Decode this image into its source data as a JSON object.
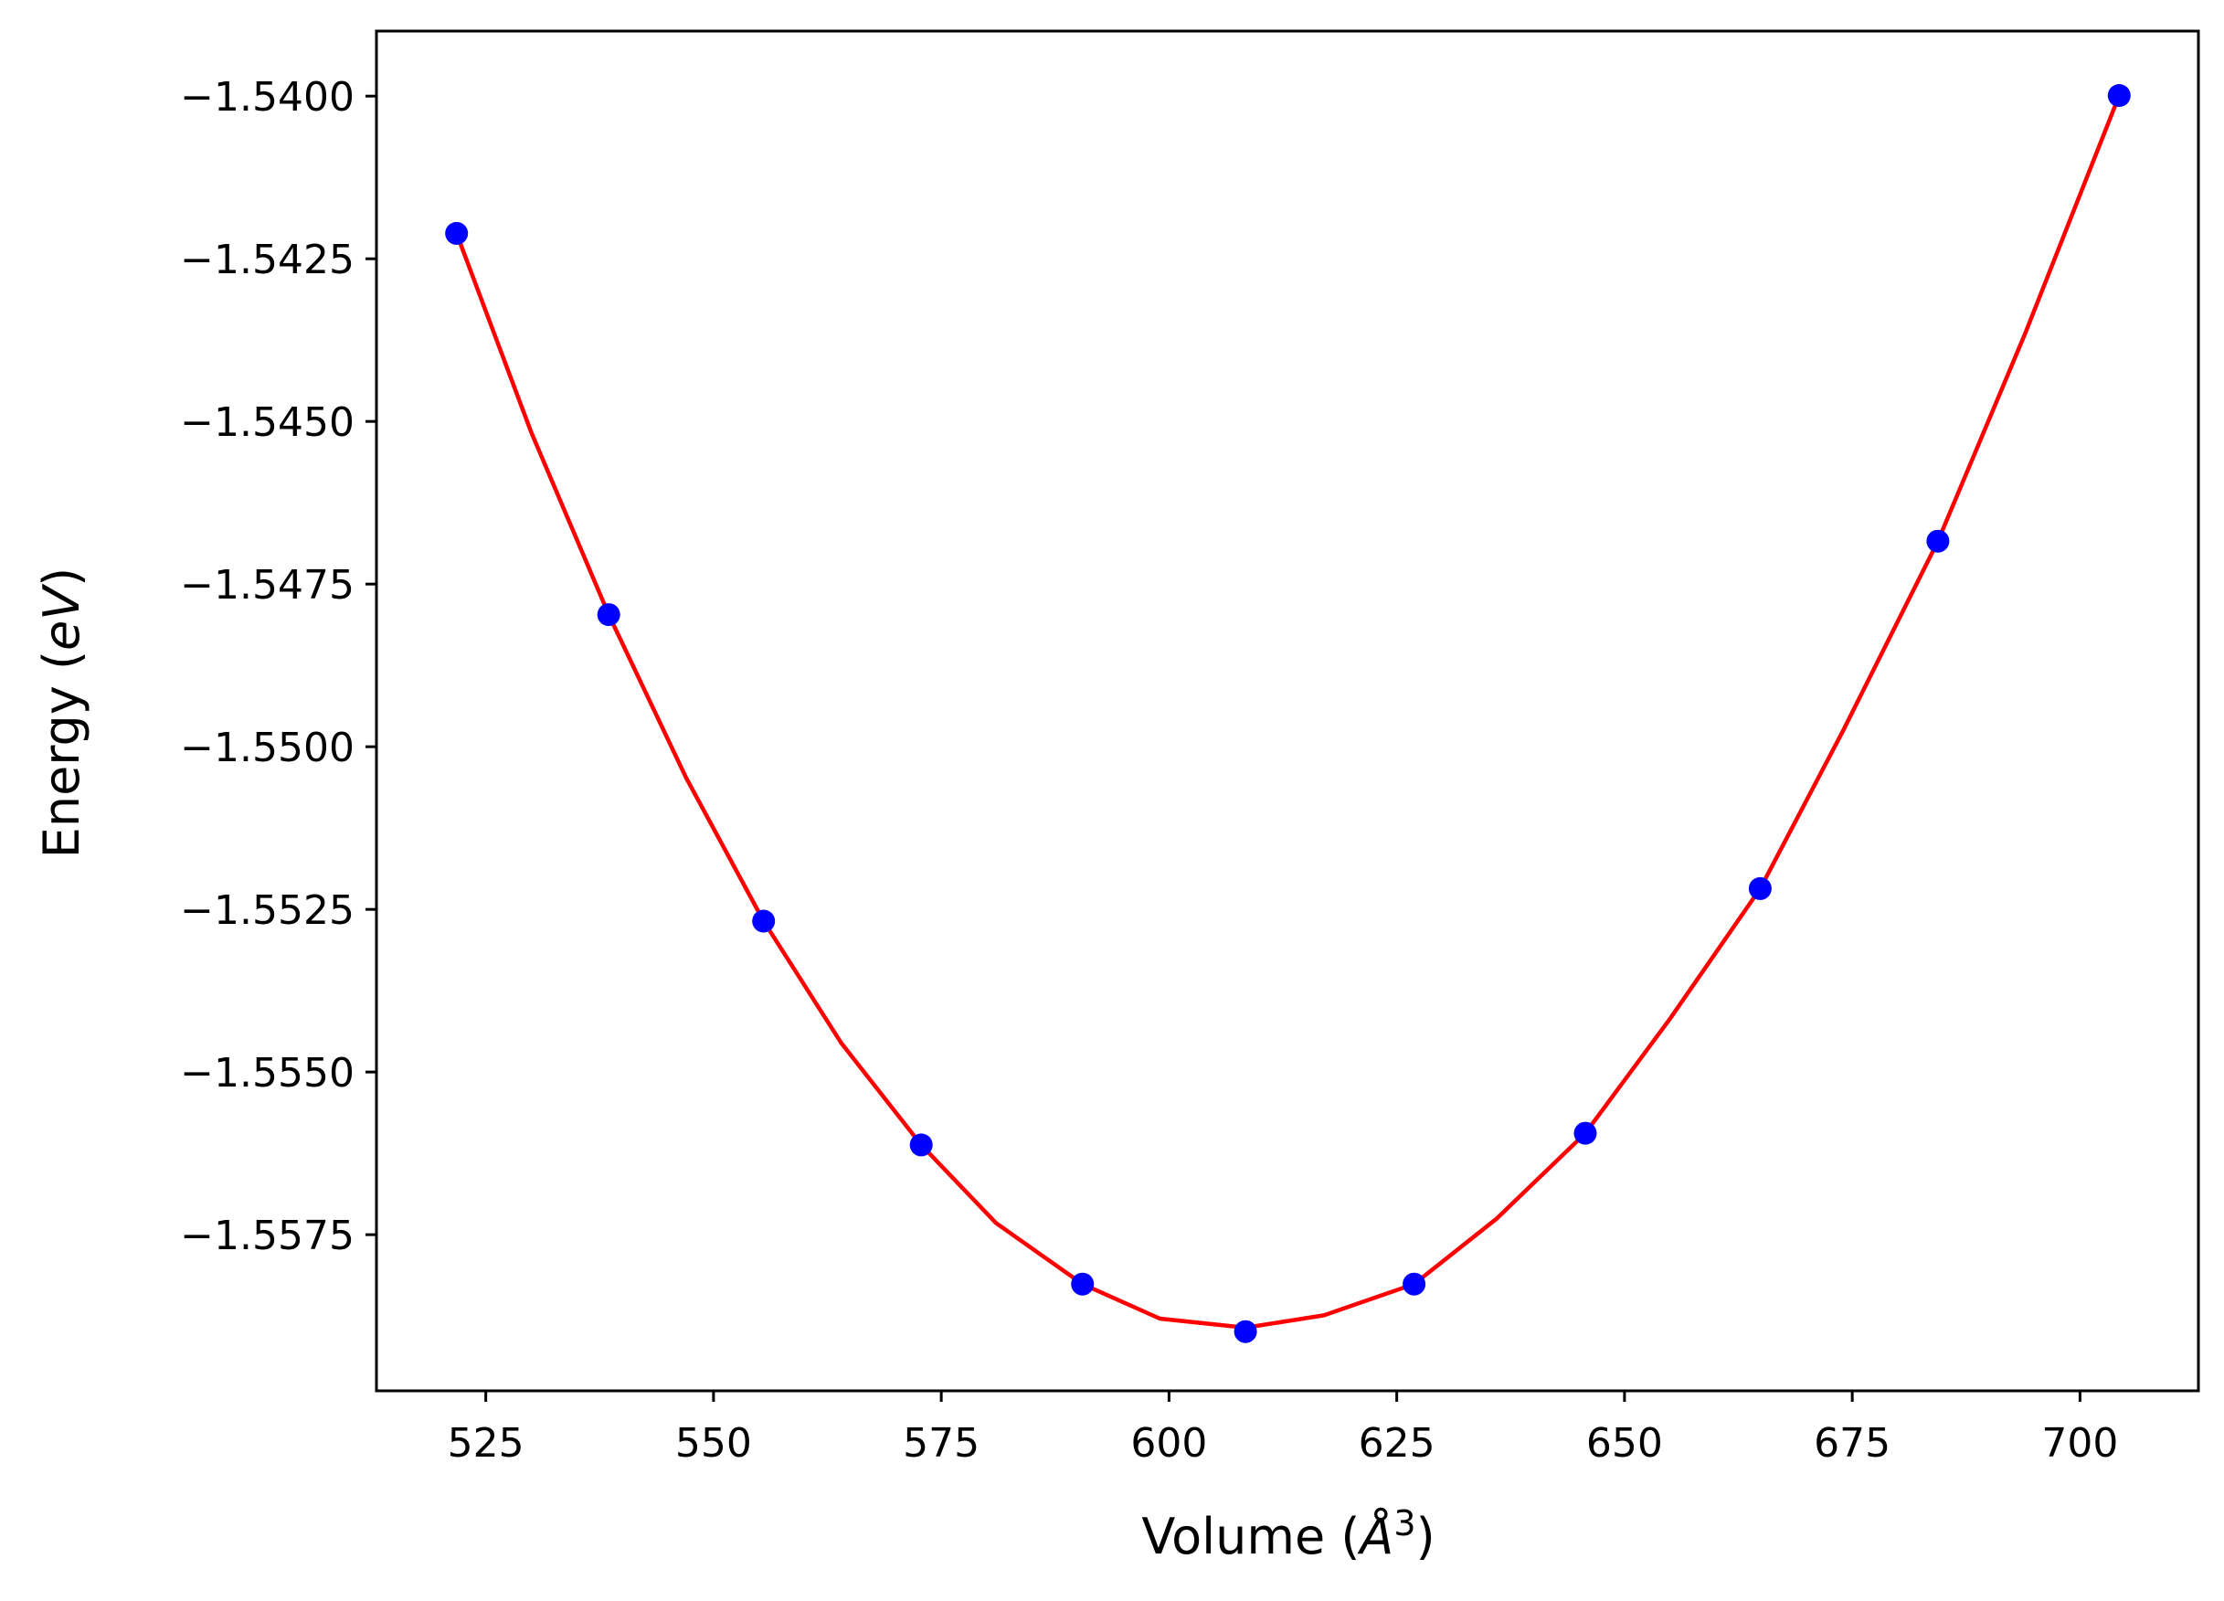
{
  "chart_data": {
    "type": "scatter",
    "xlabel": "Volume (",
    "xlabel_symbol": "Å",
    "xlabel_exponent": "3",
    "xlabel_close": ")",
    "ylabel": "Energy (",
    "ylabel_symbol": "eV",
    "ylabel_close": ")",
    "xlim": [
      513,
      713
    ],
    "ylim": [
      -1.5599,
      -1.539
    ],
    "xticks": [
      525,
      550,
      575,
      600,
      625,
      650,
      675,
      700
    ],
    "yticks": [
      -1.54,
      -1.5425,
      -1.545,
      -1.5475,
      -1.55,
      -1.5525,
      -1.555,
      -1.5575
    ],
    "ytick_labels": [
      "−1.5400",
      "−1.5425",
      "−1.5450",
      "−1.5475",
      "−1.5500",
      "−1.5525",
      "−1.5550",
      "−1.5575"
    ],
    "xtick_labels": [
      "525",
      "550",
      "575",
      "600",
      "625",
      "650",
      "675",
      "700"
    ],
    "grid": false,
    "series": [
      {
        "kind": "points",
        "color": "#0000ff",
        "x": [
          521.8,
          538.5,
          555.5,
          572.8,
          590.5,
          608.4,
          626.9,
          645.7,
          664.9,
          684.4,
          704.3
        ],
        "y": [
          -1.54211,
          -1.54797,
          -1.55268,
          -1.55612,
          -1.55826,
          -1.55899,
          -1.55826,
          -1.55594,
          -1.55218,
          -1.54684,
          -1.53999
        ]
      },
      {
        "kind": "fit",
        "color": "#ff0000",
        "x": [
          521.8,
          530,
          538.5,
          547,
          555.5,
          564,
          572.8,
          581,
          590.5,
          599,
          608.4,
          617,
          626.9,
          636,
          645.7,
          655,
          664.9,
          674,
          684.4,
          694,
          704.3
        ],
        "y": [
          -1.54211,
          -1.54517,
          -1.54797,
          -1.55048,
          -1.55268,
          -1.55455,
          -1.55612,
          -1.55732,
          -1.55826,
          -1.55879,
          -1.55893,
          -1.55874,
          -1.55826,
          -1.55725,
          -1.55594,
          -1.55418,
          -1.55218,
          -1.54975,
          -1.54684,
          -1.54364,
          -1.53999
        ]
      }
    ]
  }
}
